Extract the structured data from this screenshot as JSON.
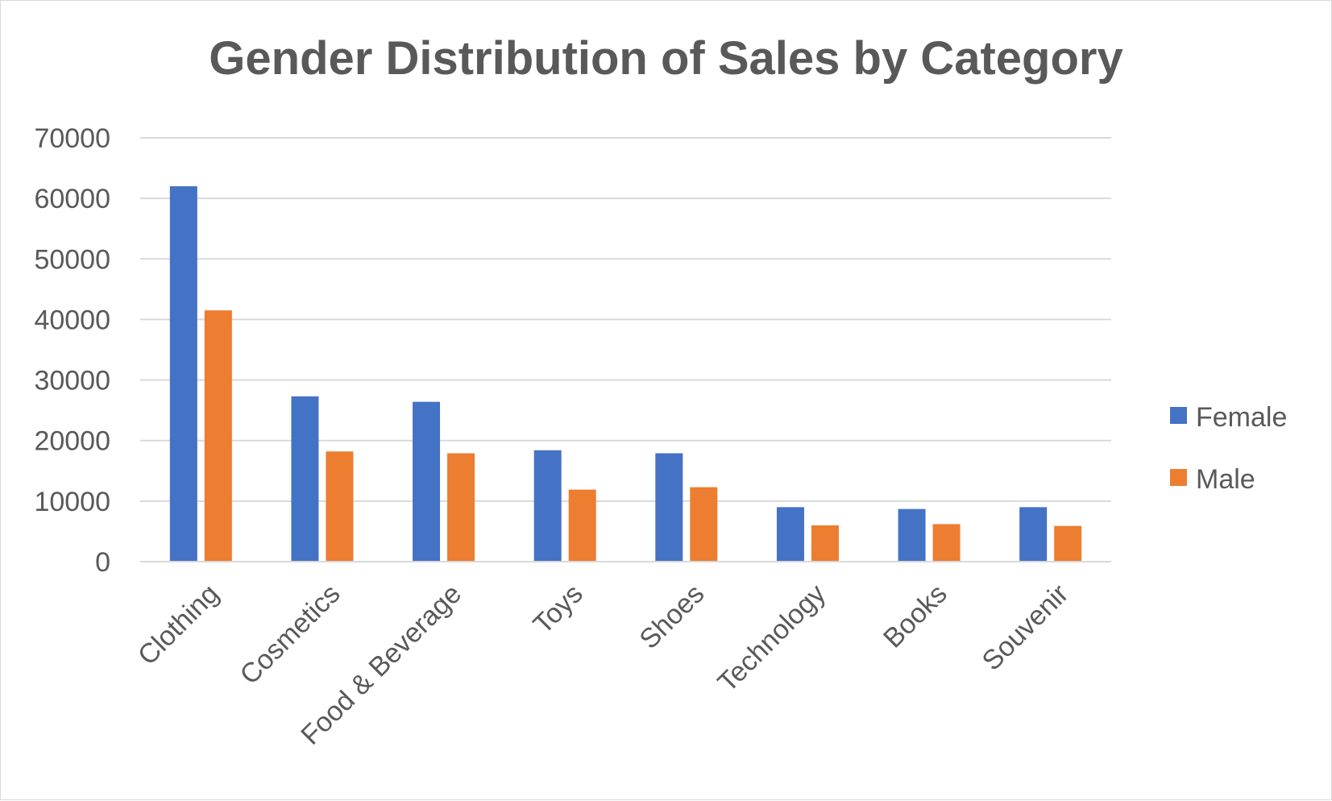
{
  "chart_data": {
    "type": "bar",
    "title": "Gender Distribution of Sales by Category",
    "xlabel": "",
    "ylabel": "",
    "ylim": [
      0,
      70000
    ],
    "yticks": [
      "0",
      "10000",
      "20000",
      "30000",
      "40000",
      "50000",
      "60000",
      "70000"
    ],
    "grid": true,
    "legend_position": "right",
    "categories": [
      "Clothing",
      "Cosmetics",
      "Food & Beverage",
      "Toys",
      "Shoes",
      "Technology",
      "Books",
      "Souvenir"
    ],
    "series": [
      {
        "name": "Female",
        "color": "#4472c4",
        "values": [
          62000,
          27300,
          26400,
          18400,
          17900,
          9000,
          8700,
          9000
        ]
      },
      {
        "name": "Male",
        "color": "#ed7d31",
        "values": [
          41500,
          18200,
          17900,
          11900,
          12300,
          6000,
          6200,
          5900
        ]
      }
    ]
  }
}
